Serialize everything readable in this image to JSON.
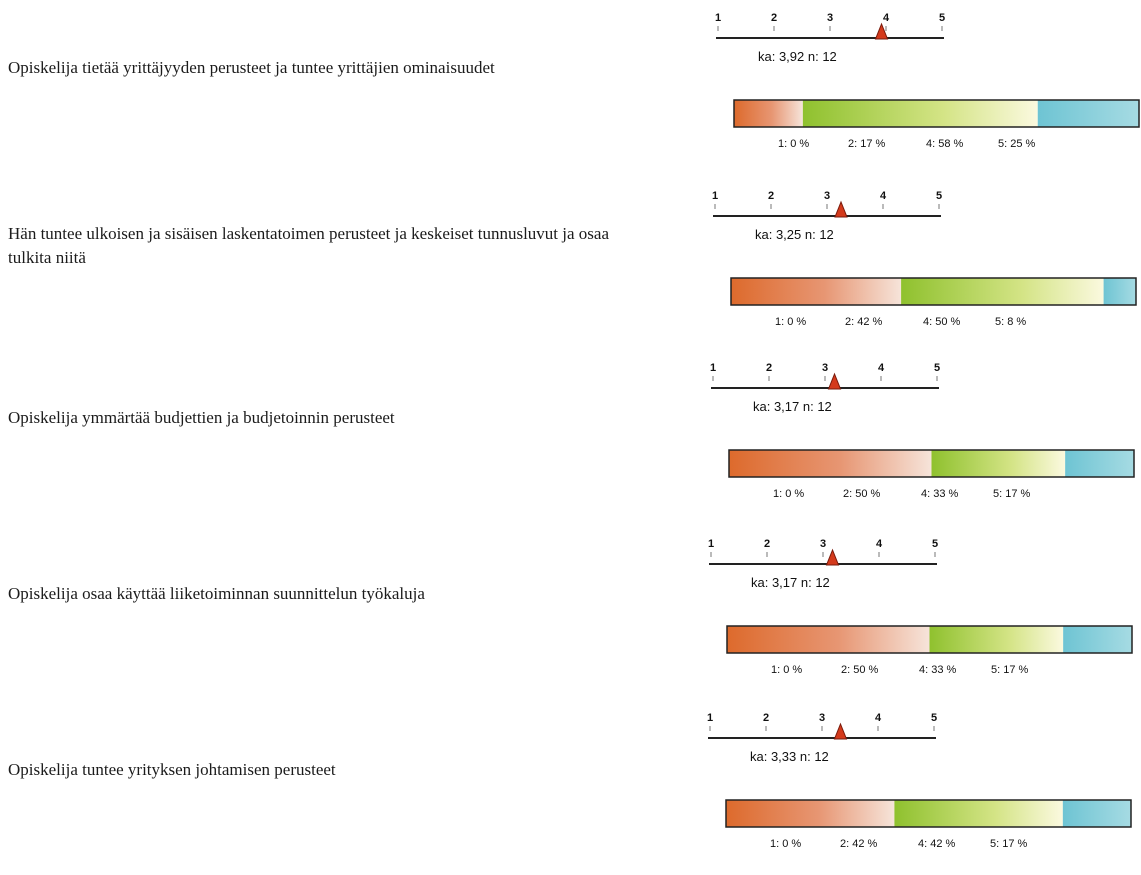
{
  "questions": [
    {
      "text": "Opiskelija tietää yrittäjyyden perusteet ja tuntee yrittäjien ominaisuudet",
      "summary": "ka: 3,92 n: 12",
      "segment_labels": [
        "1: 0 %",
        "2: 17 %",
        "4: 58 %",
        "5: 25 %"
      ]
    },
    {
      "text": "Hän tuntee ulkoisen ja sisäisen laskentatoimen perusteet ja keskeiset tunnusluvut ja osaa tulkita niitä",
      "summary": "ka: 3,25 n: 12",
      "segment_labels": [
        "1: 0 %",
        "2: 42 %",
        "4: 50 %",
        "5: 8 %"
      ]
    },
    {
      "text": "Opiskelija ymmärtää budjettien ja budjetoinnin perusteet",
      "summary": "ka: 3,17 n: 12",
      "segment_labels": [
        "1: 0 %",
        "2: 50 %",
        "4: 33 %",
        "5: 17 %"
      ]
    },
    {
      "text": "Opiskelija osaa käyttää liiketoiminnan suunnittelun työkaluja",
      "summary": "ka: 3,17 n: 12",
      "segment_labels": [
        "1: 0 %",
        "2: 50 %",
        "4: 33 %",
        "5: 17 %"
      ]
    },
    {
      "text": "Opiskelija tuntee yrityksen johtamisen perusteet",
      "summary": "ka: 3,33 n: 12",
      "segment_labels": [
        "1: 0 %",
        "2: 42 %",
        "4: 42 %",
        "5: 17 %"
      ]
    }
  ],
  "chart_data": {
    "type": "bar",
    "stacked": true,
    "orientation": "horizontal",
    "scale_ticks": [
      "1",
      "2",
      "3",
      "4",
      "5"
    ],
    "scale_range": [
      1,
      5
    ],
    "colors": {
      "1": "#d63a16",
      "2": "#dd6a2c",
      "3": "#f3f0c8",
      "4": "#8fc12e",
      "5": "#6ec4d3",
      "mean_marker": "#d43a1c",
      "axis": "#222222"
    },
    "items": [
      {
        "mean": 3.92,
        "n": 12,
        "percents": {
          "1": 0,
          "2": 17,
          "4": 58,
          "5": 25
        }
      },
      {
        "mean": 3.25,
        "n": 12,
        "percents": {
          "1": 0,
          "2": 42,
          "4": 50,
          "5": 8
        }
      },
      {
        "mean": 3.17,
        "n": 12,
        "percents": {
          "1": 0,
          "2": 50,
          "4": 33,
          "5": 17
        }
      },
      {
        "mean": 3.17,
        "n": 12,
        "percents": {
          "1": 0,
          "2": 50,
          "4": 33,
          "5": 17
        }
      },
      {
        "mean": 3.33,
        "n": 12,
        "percents": {
          "1": 0,
          "2": 42,
          "4": 42,
          "5": 17
        }
      }
    ]
  }
}
